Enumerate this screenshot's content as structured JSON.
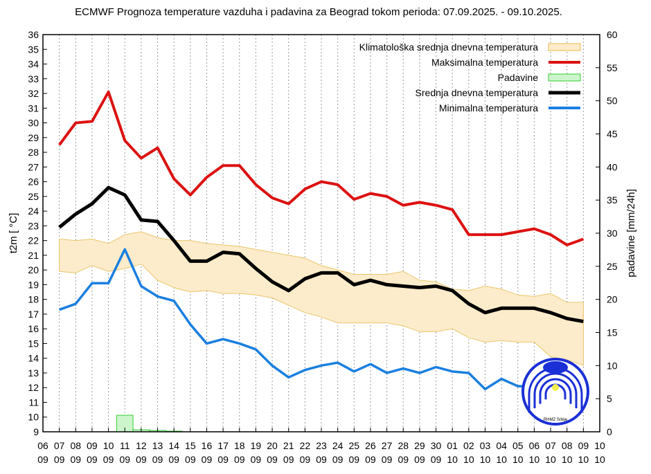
{
  "chart_data": {
    "type": "line",
    "title": "ECMWF Prognoza temperature vazduha i padavina za Beograd tokom perioda: 07.09.2025. - 09.10.2025.",
    "ylabel": "t2m [ °C]",
    "y2label": "padavine [mm/24h]",
    "ylim": [
      9,
      36
    ],
    "y2lim": [
      0,
      60
    ],
    "grid": "vertical dotted",
    "legend_position": "top-right",
    "x_ticks": [
      [
        "06",
        "09"
      ],
      [
        "07",
        "09"
      ],
      [
        "08",
        "09"
      ],
      [
        "09",
        "09"
      ],
      [
        "10",
        "09"
      ],
      [
        "11",
        "09"
      ],
      [
        "12",
        "09"
      ],
      [
        "13",
        "09"
      ],
      [
        "14",
        "09"
      ],
      [
        "15",
        "09"
      ],
      [
        "16",
        "09"
      ],
      [
        "17",
        "09"
      ],
      [
        "18",
        "09"
      ],
      [
        "19",
        "09"
      ],
      [
        "20",
        "09"
      ],
      [
        "21",
        "09"
      ],
      [
        "22",
        "09"
      ],
      [
        "23",
        "09"
      ],
      [
        "24",
        "09"
      ],
      [
        "25",
        "09"
      ],
      [
        "26",
        "09"
      ],
      [
        "27",
        "09"
      ],
      [
        "28",
        "09"
      ],
      [
        "29",
        "09"
      ],
      [
        "30",
        "09"
      ],
      [
        "01",
        "10"
      ],
      [
        "02",
        "10"
      ],
      [
        "03",
        "10"
      ],
      [
        "04",
        "10"
      ],
      [
        "05",
        "10"
      ],
      [
        "06",
        "10"
      ],
      [
        "07",
        "10"
      ],
      [
        "08",
        "10"
      ],
      [
        "09",
        "10"
      ],
      [
        "10",
        "10"
      ]
    ],
    "y_ticks": [
      9,
      10,
      11,
      12,
      13,
      14,
      15,
      16,
      17,
      18,
      19,
      20,
      21,
      22,
      23,
      24,
      25,
      26,
      27,
      28,
      29,
      30,
      31,
      32,
      33,
      34,
      35,
      36
    ],
    "y2_ticks": [
      0,
      5,
      10,
      15,
      20,
      25,
      30,
      35,
      40,
      45,
      50,
      55,
      60
    ],
    "x_dates": [
      "07.09",
      "08.09",
      "09.09",
      "10.09",
      "11.09",
      "12.09",
      "13.09",
      "14.09",
      "15.09",
      "16.09",
      "17.09",
      "18.09",
      "19.09",
      "20.09",
      "21.09",
      "22.09",
      "23.09",
      "24.09",
      "25.09",
      "26.09",
      "27.09",
      "28.09",
      "29.09",
      "30.09",
      "01.10",
      "02.10",
      "03.10",
      "04.10",
      "05.10",
      "06.10",
      "07.10",
      "08.10",
      "09.10"
    ],
    "series": [
      {
        "name": "Klimatološka srednja dnevna temperatura",
        "kind": "band",
        "color": "#f5deb3",
        "upper": [
          22.1,
          22.0,
          22.1,
          21.8,
          22.4,
          22.6,
          22.2,
          22.0,
          22.0,
          21.8,
          21.7,
          21.6,
          21.4,
          21.2,
          21.0,
          20.8,
          20.3,
          20.0,
          19.7,
          19.7,
          19.7,
          19.9,
          19.3,
          19.2,
          18.7,
          18.6,
          18.9,
          18.7,
          18.3,
          18.2,
          18.4,
          17.8,
          17.8
        ],
        "lower": [
          19.9,
          19.8,
          20.3,
          19.9,
          20.1,
          20.4,
          19.3,
          18.8,
          18.5,
          18.6,
          18.4,
          18.4,
          18.3,
          18.1,
          17.6,
          17.1,
          16.8,
          16.4,
          16.4,
          16.4,
          16.4,
          16.2,
          15.8,
          15.8,
          16.0,
          15.4,
          15.1,
          15.2,
          15.1,
          15.1,
          14.1,
          13.9,
          13.5
        ]
      },
      {
        "name": "Maksimalna temperatura",
        "kind": "line",
        "color": "#dd1111",
        "values": [
          28.5,
          30.0,
          30.1,
          32.1,
          28.8,
          27.6,
          28.3,
          26.2,
          25.1,
          26.3,
          27.1,
          27.1,
          25.8,
          24.9,
          24.5,
          25.5,
          26.0,
          25.8,
          24.8,
          25.2,
          25.0,
          24.4,
          24.6,
          24.4,
          24.1,
          22.4,
          22.4,
          22.4,
          22.6,
          22.8,
          22.4,
          21.7,
          22.1
        ]
      },
      {
        "name": "Padavine",
        "kind": "bar",
        "axis": "right",
        "color": "#99ee99",
        "values": [
          0,
          0,
          0,
          0,
          2.5,
          0.3,
          0.2,
          0.1,
          0,
          0,
          0,
          0,
          0,
          0,
          0,
          0,
          0,
          0,
          0,
          0,
          0,
          0,
          0,
          0,
          0,
          0,
          0,
          0,
          0,
          0,
          0,
          0,
          0
        ]
      },
      {
        "name": "Srednja dnevna temperatura",
        "kind": "line",
        "color": "#000000",
        "values": [
          22.9,
          23.8,
          24.5,
          25.6,
          25.1,
          23.4,
          23.3,
          22.0,
          20.6,
          20.6,
          21.2,
          21.1,
          20.1,
          19.2,
          18.6,
          19.4,
          19.8,
          19.8,
          19.0,
          19.3,
          19.0,
          18.9,
          18.8,
          18.9,
          18.6,
          17.7,
          17.1,
          17.4,
          17.4,
          17.4,
          17.1,
          16.7,
          16.5
        ]
      },
      {
        "name": "Minimalna temperatura",
        "kind": "line",
        "color": "#1a7fe0",
        "values": [
          17.3,
          17.7,
          19.1,
          19.1,
          21.4,
          18.9,
          18.2,
          17.9,
          16.3,
          15.0,
          15.3,
          15.0,
          14.6,
          13.5,
          12.7,
          13.2,
          13.5,
          13.7,
          13.1,
          13.6,
          13.0,
          13.3,
          13.0,
          13.4,
          13.1,
          13.0,
          11.9,
          12.6,
          12.1,
          12.1,
          11.8,
          11.5,
          11.3
        ]
      }
    ]
  },
  "logo": {
    "text": "RHMZ Srbije",
    "color": "#1a2fd6"
  }
}
